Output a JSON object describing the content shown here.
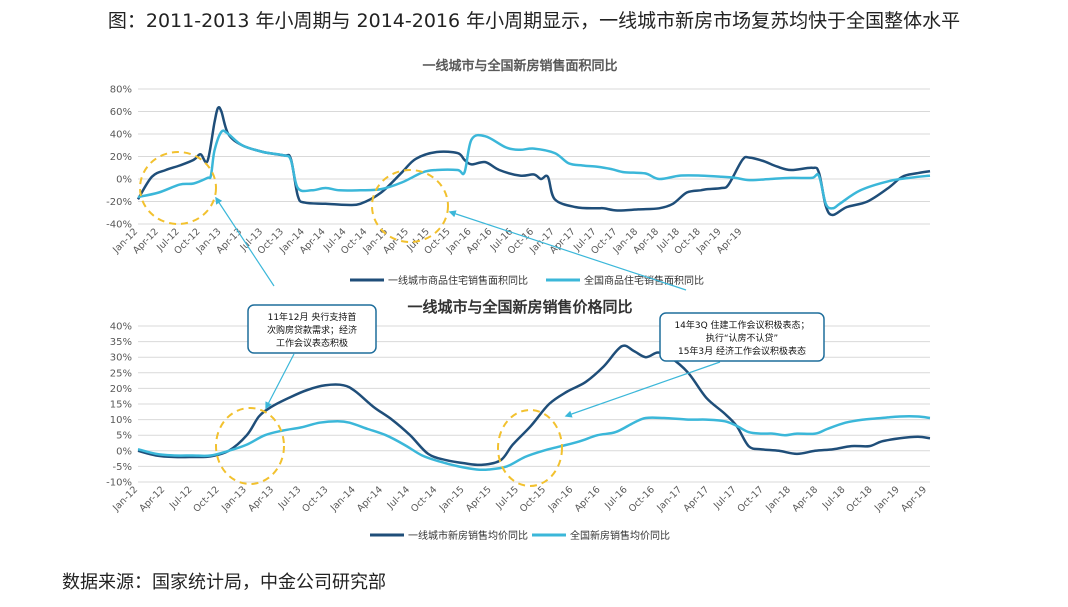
{
  "figure_title": "图：2011-2013 年小周期与 2014-2016 年小周期显示，一线城市新房市场复苏均快于全国整体水平",
  "source": "数据来源：国家统计局，中金公司研究部",
  "colors": {
    "tier1": "#1f4e79",
    "national": "#3bb7d9",
    "annotation": "#f2c12e",
    "arrow": "#3bb7d9",
    "grid": "#d9d9d9"
  },
  "annotations": [
    {
      "lines": [
        "11年12月 央行支持首",
        "次购房贷款需求；经济",
        "工作会议表态积极"
      ]
    },
    {
      "lines": [
        "14年3Q 住建工作会议积极表态；",
        "执行“认房不认贷”",
        "15年3月 经济工作会议积极表态"
      ]
    }
  ],
  "chart_data": [
    {
      "type": "line",
      "title": "一线城市与全国新房销售面积同比",
      "yticks": [
        "80%",
        "60%",
        "40%",
        "20%",
        "0%",
        "-20%",
        "-40%"
      ],
      "ylim": [
        -40,
        80
      ],
      "xticks": [
        "Jan-12",
        "Apr-12",
        "Jul-12",
        "Oct-12",
        "Jan-13",
        "Apr-13",
        "Jul-13",
        "Oct-13",
        "Jan-14",
        "Apr-14",
        "Jul-14",
        "Oct-14",
        "Jan-15",
        "Apr-15",
        "Jul-15",
        "Oct-15",
        "Jan-16",
        "Apr-16",
        "Jul-16",
        "Oct-16",
        "Jan-17",
        "Apr-17",
        "Jul-17",
        "Oct-17",
        "Jan-18",
        "Apr-18",
        "Jul-18",
        "Oct-18",
        "Jan-19",
        "Apr-19"
      ],
      "series": [
        {
          "name": "一线城市商品住宅销售面积同比",
          "color": "#1f4e79",
          "points": [
            [
              0,
              -18
            ],
            [
              2,
              2
            ],
            [
              4,
              8
            ],
            [
              6,
              12
            ],
            [
              8,
              17
            ],
            [
              9,
              22
            ],
            [
              10,
              16
            ],
            [
              11,
              50
            ],
            [
              11.5,
              63
            ],
            [
              12,
              60
            ],
            [
              13,
              40
            ],
            [
              15,
              30
            ],
            [
              18,
              24
            ],
            [
              21,
              21
            ],
            [
              22,
              18
            ],
            [
              23,
              -15
            ],
            [
              24,
              -21
            ],
            [
              27,
              -22
            ],
            [
              30,
              -23
            ],
            [
              32,
              -22
            ],
            [
              35,
              -12
            ],
            [
              38,
              6
            ],
            [
              40,
              18
            ],
            [
              43,
              24
            ],
            [
              46,
              23
            ],
            [
              47,
              17
            ],
            [
              48,
              13
            ],
            [
              50,
              15
            ],
            [
              52,
              8
            ],
            [
              55,
              3
            ],
            [
              57,
              4
            ],
            [
              58,
              0
            ],
            [
              59,
              2
            ],
            [
              60,
              -18
            ],
            [
              63,
              -25
            ],
            [
              66,
              -26
            ],
            [
              67,
              -26
            ],
            [
              69,
              -28
            ],
            [
              72,
              -27
            ],
            [
              75,
              -26
            ],
            [
              77,
              -22
            ],
            [
              79,
              -12
            ],
            [
              81,
              -10
            ],
            [
              82,
              -9
            ],
            [
              84,
              -8
            ],
            [
              85,
              -5
            ],
            [
              87,
              17
            ],
            [
              88,
              19
            ],
            [
              90,
              16
            ],
            [
              92,
              11
            ],
            [
              94,
              8
            ],
            [
              97,
              10
            ],
            [
              98,
              6
            ],
            [
              99,
              -24
            ],
            [
              100,
              -32
            ],
            [
              102,
              -25
            ],
            [
              105,
              -20
            ],
            [
              108,
              -8
            ],
            [
              110,
              2
            ],
            [
              112,
              5
            ],
            [
              114,
              7
            ]
          ]
        },
        {
          "name": "全国商品住宅销售面积同比",
          "color": "#3bb7d9",
          "points": [
            [
              0,
              -16
            ],
            [
              3,
              -12
            ],
            [
              6,
              -5
            ],
            [
              8,
              -4
            ],
            [
              10,
              1
            ],
            [
              10.5,
              3
            ],
            [
              11,
              25
            ],
            [
              12,
              42
            ],
            [
              13,
              40
            ],
            [
              15,
              30
            ],
            [
              18,
              24
            ],
            [
              21,
              21
            ],
            [
              22,
              17
            ],
            [
              23,
              -8
            ],
            [
              25,
              -10
            ],
            [
              27,
              -8
            ],
            [
              29,
              -10
            ],
            [
              32,
              -10
            ],
            [
              35,
              -9
            ],
            [
              38,
              -3
            ],
            [
              41,
              6
            ],
            [
              43,
              8
            ],
            [
              46,
              8
            ],
            [
              47,
              6
            ],
            [
              48,
              35
            ],
            [
              50,
              38
            ],
            [
              53,
              28
            ],
            [
              55,
              26
            ],
            [
              57,
              27
            ],
            [
              60,
              23
            ],
            [
              62,
              14
            ],
            [
              64,
              12
            ],
            [
              66,
              11
            ],
            [
              68,
              9
            ],
            [
              70,
              6
            ],
            [
              73,
              5
            ],
            [
              75,
              0
            ],
            [
              78,
              3
            ],
            [
              81,
              3
            ],
            [
              84,
              2
            ],
            [
              86,
              1
            ],
            [
              88,
              -1
            ],
            [
              91,
              0
            ],
            [
              94,
              1
            ],
            [
              97,
              1
            ],
            [
              98,
              3
            ],
            [
              99,
              -22
            ],
            [
              100,
              -26
            ],
            [
              101,
              -22
            ],
            [
              104,
              -10
            ],
            [
              108,
              -2
            ],
            [
              111,
              1
            ],
            [
              114,
              3
            ]
          ]
        }
      ]
    },
    {
      "type": "line",
      "title": "一线城市与全国新房销售价格同比",
      "yticks": [
        "40%",
        "35%",
        "30%",
        "25%",
        "20%",
        "15%",
        "10%",
        "5%",
        "0%",
        "-5%",
        "-10%"
      ],
      "ylim": [
        -10,
        40
      ],
      "xticks": [
        "Jan-12",
        "Apr-12",
        "Jul-12",
        "Oct-12",
        "Jan-13",
        "Apr-13",
        "Jul-13",
        "Oct-13",
        "Jan-14",
        "Apr-14",
        "Jul-14",
        "Oct-14",
        "Jan-15",
        "Apr-15",
        "Jul-15",
        "Oct-15",
        "Jan-16",
        "Apr-16",
        "Jul-16",
        "Oct-16",
        "Jan-17",
        "Apr-17",
        "Jul-17",
        "Oct-17",
        "Jan-18",
        "Apr-18",
        "Jul-18",
        "Oct-18",
        "Jan-19",
        "Apr-19"
      ],
      "series": [
        {
          "name": "一线城市新房销售均价同比",
          "color": "#1f4e79",
          "points": [
            [
              0,
              0
            ],
            [
              3,
              -1.5
            ],
            [
              6,
              -2
            ],
            [
              9,
              -2
            ],
            [
              12,
              -1.8
            ],
            [
              15,
              0
            ],
            [
              18,
              5
            ],
            [
              20,
              11
            ],
            [
              22,
              14
            ],
            [
              25,
              17
            ],
            [
              28,
              19.5
            ],
            [
              31,
              21
            ],
            [
              34,
              21
            ],
            [
              36,
              19
            ],
            [
              39,
              14
            ],
            [
              42,
              10
            ],
            [
              45,
              5
            ],
            [
              48,
              -1
            ],
            [
              51,
              -3
            ],
            [
              54,
              -4
            ],
            [
              57,
              -4.5
            ],
            [
              60,
              -3
            ],
            [
              62,
              2
            ],
            [
              65,
              8
            ],
            [
              68,
              15
            ],
            [
              71,
              19
            ],
            [
              74,
              22
            ],
            [
              77,
              27
            ],
            [
              80,
              33.5
            ],
            [
              82,
              32
            ],
            [
              84,
              30
            ],
            [
              86,
              31.5
            ],
            [
              88,
              30
            ],
            [
              91,
              25
            ],
            [
              94,
              17
            ],
            [
              97,
              12
            ],
            [
              99,
              8
            ],
            [
              101,
              1.5
            ],
            [
              103,
              0.5
            ],
            [
              106,
              0
            ],
            [
              109,
              -1
            ],
            [
              112,
              0
            ],
            [
              115,
              0.5
            ],
            [
              118,
              1.5
            ],
            [
              121,
              1.5
            ],
            [
              123,
              3
            ],
            [
              126,
              4
            ],
            [
              129,
              4.5
            ],
            [
              131,
              4
            ]
          ]
        },
        {
          "name": "全国新房销售均价同比",
          "color": "#3bb7d9",
          "points": [
            [
              0,
              0.5
            ],
            [
              3,
              -1
            ],
            [
              6,
              -1.5
            ],
            [
              9,
              -1.5
            ],
            [
              12,
              -1.5
            ],
            [
              15,
              0
            ],
            [
              18,
              2
            ],
            [
              21,
              5
            ],
            [
              24,
              6.5
            ],
            [
              27,
              7.5
            ],
            [
              30,
              9
            ],
            [
              33,
              9.5
            ],
            [
              35,
              9
            ],
            [
              38,
              7
            ],
            [
              41,
              5
            ],
            [
              44,
              2
            ],
            [
              47,
              -1.5
            ],
            [
              50,
              -3.5
            ],
            [
              53,
              -5
            ],
            [
              56,
              -6
            ],
            [
              58,
              -6
            ],
            [
              61,
              -5
            ],
            [
              64,
              -2
            ],
            [
              67,
              0
            ],
            [
              70,
              1.5
            ],
            [
              73,
              3
            ],
            [
              76,
              5
            ],
            [
              79,
              6
            ],
            [
              82,
              9
            ],
            [
              84,
              10.5
            ],
            [
              87,
              10.5
            ],
            [
              91,
              10
            ],
            [
              94,
              10
            ],
            [
              97,
              9.5
            ],
            [
              99,
              8
            ],
            [
              101,
              6
            ],
            [
              103,
              5.5
            ],
            [
              105,
              5.5
            ],
            [
              107,
              5
            ],
            [
              109,
              5.5
            ],
            [
              112,
              5.5
            ],
            [
              114,
              7
            ],
            [
              117,
              9
            ],
            [
              120,
              10
            ],
            [
              123,
              10.5
            ],
            [
              126,
              11
            ],
            [
              129,
              11
            ],
            [
              131,
              10.5
            ]
          ]
        }
      ]
    }
  ]
}
